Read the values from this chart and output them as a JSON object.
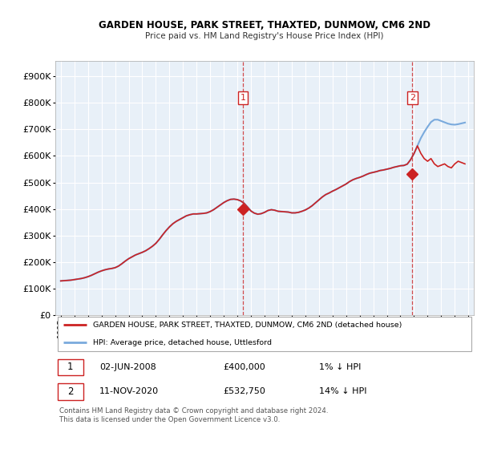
{
  "title": "GARDEN HOUSE, PARK STREET, THAXTED, DUNMOW, CM6 2ND",
  "subtitle": "Price paid vs. HM Land Registry's House Price Index (HPI)",
  "ylabel_ticks": [
    "£0",
    "£100K",
    "£200K",
    "£300K",
    "£400K",
    "£500K",
    "£600K",
    "£700K",
    "£800K",
    "£900K"
  ],
  "ytick_values": [
    0,
    100000,
    200000,
    300000,
    400000,
    500000,
    600000,
    700000,
    800000,
    900000
  ],
  "xlim_start": 1994.6,
  "xlim_end": 2025.4,
  "ylim": [
    0,
    960000
  ],
  "background_color": "#ffffff",
  "chart_bg_color": "#e8f0f8",
  "grid_color": "#ffffff",
  "hpi_color": "#7aaadd",
  "price_color": "#cc2222",
  "sale1_date_x": 2008.42,
  "sale1_price": 400000,
  "sale2_date_x": 2020.87,
  "sale2_price": 532750,
  "legend_label1": "GARDEN HOUSE, PARK STREET, THAXTED, DUNMOW, CM6 2ND (detached house)",
  "legend_label2": "HPI: Average price, detached house, Uttlesford",
  "table_row1": [
    "1",
    "02-JUN-2008",
    "£400,000",
    "1% ↓ HPI"
  ],
  "table_row2": [
    "2",
    "11-NOV-2020",
    "£532,750",
    "14% ↓ HPI"
  ],
  "footnote": "Contains HM Land Registry data © Crown copyright and database right 2024.\nThis data is licensed under the Open Government Licence v3.0.",
  "hpi_data_years": [
    1995.0,
    1995.25,
    1995.5,
    1995.75,
    1996.0,
    1996.25,
    1996.5,
    1996.75,
    1997.0,
    1997.25,
    1997.5,
    1997.75,
    1998.0,
    1998.25,
    1998.5,
    1998.75,
    1999.0,
    1999.25,
    1999.5,
    1999.75,
    2000.0,
    2000.25,
    2000.5,
    2000.75,
    2001.0,
    2001.25,
    2001.5,
    2001.75,
    2002.0,
    2002.25,
    2002.5,
    2002.75,
    2003.0,
    2003.25,
    2003.5,
    2003.75,
    2004.0,
    2004.25,
    2004.5,
    2004.75,
    2005.0,
    2005.25,
    2005.5,
    2005.75,
    2006.0,
    2006.25,
    2006.5,
    2006.75,
    2007.0,
    2007.25,
    2007.5,
    2007.75,
    2008.0,
    2008.25,
    2008.5,
    2008.75,
    2009.0,
    2009.25,
    2009.5,
    2009.75,
    2010.0,
    2010.25,
    2010.5,
    2010.75,
    2011.0,
    2011.25,
    2011.5,
    2011.75,
    2012.0,
    2012.25,
    2012.5,
    2012.75,
    2013.0,
    2013.25,
    2013.5,
    2013.75,
    2014.0,
    2014.25,
    2014.5,
    2014.75,
    2015.0,
    2015.25,
    2015.5,
    2015.75,
    2016.0,
    2016.25,
    2016.5,
    2016.75,
    2017.0,
    2017.25,
    2017.5,
    2017.75,
    2018.0,
    2018.25,
    2018.5,
    2018.75,
    2019.0,
    2019.25,
    2019.5,
    2019.75,
    2020.0,
    2020.25,
    2020.5,
    2020.75,
    2021.0,
    2021.25,
    2021.5,
    2021.75,
    2022.0,
    2022.25,
    2022.5,
    2022.75,
    2023.0,
    2023.25,
    2023.5,
    2023.75,
    2024.0,
    2024.25,
    2024.5,
    2024.75
  ],
  "hpi_data_values": [
    128000,
    129000,
    130000,
    131000,
    133000,
    135000,
    137000,
    140000,
    144000,
    149000,
    155000,
    161000,
    166000,
    170000,
    173000,
    175000,
    178000,
    184000,
    193000,
    203000,
    212000,
    219000,
    226000,
    231000,
    236000,
    242000,
    250000,
    259000,
    270000,
    285000,
    302000,
    318000,
    332000,
    344000,
    353000,
    360000,
    367000,
    374000,
    378000,
    381000,
    381000,
    382000,
    383000,
    385000,
    390000,
    397000,
    406000,
    415000,
    424000,
    431000,
    436000,
    437000,
    435000,
    430000,
    421000,
    407000,
    392000,
    384000,
    380000,
    382000,
    387000,
    394000,
    397000,
    395000,
    391000,
    390000,
    389000,
    388000,
    385000,
    385000,
    387000,
    391000,
    396000,
    403000,
    412000,
    423000,
    434000,
    445000,
    454000,
    460000,
    467000,
    473000,
    480000,
    487000,
    494000,
    503000,
    510000,
    515000,
    519000,
    524000,
    530000,
    535000,
    538000,
    541000,
    545000,
    547000,
    550000,
    553000,
    557000,
    560000,
    563000,
    564000,
    569000,
    586000,
    609000,
    638000,
    667000,
    690000,
    710000,
    728000,
    737000,
    737000,
    732000,
    727000,
    722000,
    719000,
    718000,
    720000,
    723000,
    726000
  ],
  "price_data_years": [
    1995.0,
    1995.25,
    1995.5,
    1995.75,
    1996.0,
    1996.25,
    1996.5,
    1996.75,
    1997.0,
    1997.25,
    1997.5,
    1997.75,
    1998.0,
    1998.25,
    1998.5,
    1998.75,
    1999.0,
    1999.25,
    1999.5,
    1999.75,
    2000.0,
    2000.25,
    2000.5,
    2000.75,
    2001.0,
    2001.25,
    2001.5,
    2001.75,
    2002.0,
    2002.25,
    2002.5,
    2002.75,
    2003.0,
    2003.25,
    2003.5,
    2003.75,
    2004.0,
    2004.25,
    2004.5,
    2004.75,
    2005.0,
    2005.25,
    2005.5,
    2005.75,
    2006.0,
    2006.25,
    2006.5,
    2006.75,
    2007.0,
    2007.25,
    2007.5,
    2007.75,
    2008.0,
    2008.25,
    2008.5,
    2008.75,
    2009.0,
    2009.25,
    2009.5,
    2009.75,
    2010.0,
    2010.25,
    2010.5,
    2010.75,
    2011.0,
    2011.25,
    2011.5,
    2011.75,
    2012.0,
    2012.25,
    2012.5,
    2012.75,
    2013.0,
    2013.25,
    2013.5,
    2013.75,
    2014.0,
    2014.25,
    2014.5,
    2014.75,
    2015.0,
    2015.25,
    2015.5,
    2015.75,
    2016.0,
    2016.25,
    2016.5,
    2016.75,
    2017.0,
    2017.25,
    2017.5,
    2017.75,
    2018.0,
    2018.25,
    2018.5,
    2018.75,
    2019.0,
    2019.25,
    2019.5,
    2019.75,
    2020.0,
    2020.25,
    2020.5,
    2020.75,
    2021.0,
    2021.25,
    2021.5,
    2021.75,
    2022.0,
    2022.25,
    2022.5,
    2022.75,
    2023.0,
    2023.25,
    2023.5,
    2023.75,
    2024.0,
    2024.25,
    2024.5,
    2024.75
  ],
  "price_data_values": [
    128000,
    129000,
    130000,
    131000,
    133000,
    135000,
    137000,
    140000,
    144000,
    149000,
    155000,
    161000,
    166000,
    170000,
    173000,
    175000,
    178000,
    184000,
    193000,
    203000,
    212000,
    219000,
    226000,
    231000,
    236000,
    242000,
    250000,
    259000,
    270000,
    285000,
    302000,
    318000,
    332000,
    344000,
    353000,
    360000,
    367000,
    374000,
    378000,
    381000,
    381000,
    382000,
    383000,
    385000,
    390000,
    397000,
    406000,
    415000,
    424000,
    431000,
    436000,
    437000,
    435000,
    430000,
    421000,
    407000,
    392000,
    384000,
    380000,
    382000,
    387000,
    394000,
    397000,
    395000,
    391000,
    390000,
    389000,
    388000,
    385000,
    385000,
    387000,
    391000,
    396000,
    403000,
    412000,
    423000,
    434000,
    445000,
    454000,
    460000,
    467000,
    473000,
    480000,
    487000,
    494000,
    503000,
    510000,
    515000,
    519000,
    524000,
    530000,
    535000,
    538000,
    541000,
    545000,
    547000,
    550000,
    553000,
    557000,
    560000,
    563000,
    564000,
    569000,
    586000,
    609000,
    638000,
    610000,
    590000,
    580000,
    590000,
    570000,
    560000,
    565000,
    570000,
    560000,
    555000,
    570000,
    580000,
    575000,
    570000
  ]
}
